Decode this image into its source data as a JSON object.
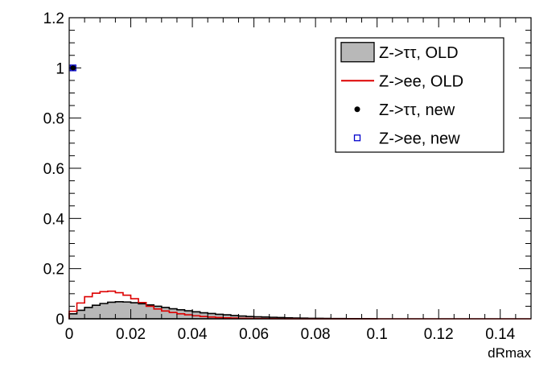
{
  "chart_data": {
    "type": "histogram",
    "title": "",
    "xlabel": "dRmax",
    "ylabel": "",
    "xlim": [
      0,
      0.15
    ],
    "ylim": [
      0,
      1.2
    ],
    "x_ticks": [
      "0",
      "0.02",
      "0.04",
      "0.06",
      "0.08",
      "0.1",
      "0.12",
      "0.14"
    ],
    "y_ticks": [
      "0",
      "0.2",
      "0.4",
      "0.6",
      "0.8",
      "1",
      "1.2"
    ],
    "grid": false,
    "legend_position": "top-right",
    "bin_width": 0.0025,
    "series": [
      {
        "name": "Z->ττ, OLD",
        "style": "filled-histogram",
        "fill": "#b8b8b8",
        "stroke": "#000000",
        "bin_edges_start": 0.0,
        "values": [
          0.02,
          0.034,
          0.045,
          0.054,
          0.061,
          0.066,
          0.068,
          0.067,
          0.064,
          0.06,
          0.055,
          0.05,
          0.045,
          0.04,
          0.036,
          0.032,
          0.028,
          0.024,
          0.021,
          0.018,
          0.016,
          0.013,
          0.011,
          0.009,
          0.008,
          0.007,
          0.006,
          0.005,
          0.004,
          0.003,
          0.0025,
          0.002,
          0.0017,
          0.0014,
          0.0012,
          0.001,
          0.0008,
          0.0006,
          0.0005,
          0.0004
        ]
      },
      {
        "name": "Z->ee, OLD",
        "style": "line-histogram",
        "stroke": "#dd0000",
        "bin_edges_start": 0.0,
        "values": [
          0.03,
          0.063,
          0.088,
          0.102,
          0.108,
          0.11,
          0.104,
          0.094,
          0.08,
          0.065,
          0.05,
          0.039,
          0.031,
          0.025,
          0.02,
          0.016,
          0.012,
          0.009,
          0.007,
          0.005,
          0.004,
          0.003,
          0.002,
          0.0015,
          0.001,
          0.0008,
          0.0006,
          0.0004,
          0.0003,
          0.0002
        ]
      },
      {
        "name": "Z->ττ, new",
        "style": "marker-dot",
        "color": "#000000",
        "points": [
          {
            "x": 0.00125,
            "y": 1.0
          }
        ]
      },
      {
        "name": "Z->ee, new",
        "style": "marker-open-square",
        "color": "#0000cc",
        "points": [
          {
            "x": 0.00125,
            "y": 1.0
          }
        ]
      }
    ]
  }
}
